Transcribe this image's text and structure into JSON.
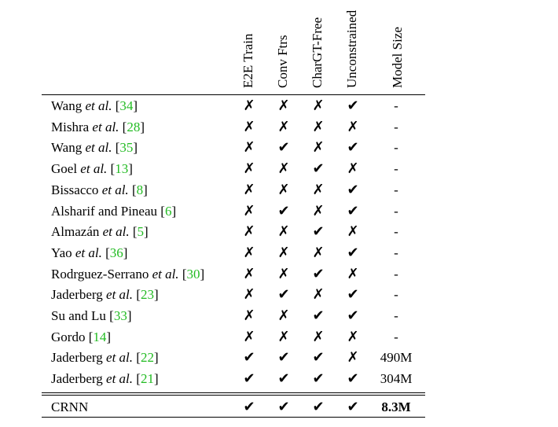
{
  "headers": [
    "E2E Train",
    "Conv Ftrs",
    "CharGT-Free",
    "Unconstrained",
    "Model Size"
  ],
  "rows": [
    {
      "author": "Wang",
      "etal": true,
      "ref": "34",
      "marks": [
        "✗",
        "✗",
        "✗",
        "✔"
      ],
      "size": "-"
    },
    {
      "author": "Mishra",
      "etal": true,
      "ref": "28",
      "marks": [
        "✗",
        "✗",
        "✗",
        "✗"
      ],
      "size": "-"
    },
    {
      "author": "Wang",
      "etal": true,
      "ref": "35",
      "marks": [
        "✗",
        "✔",
        "✗",
        "✔"
      ],
      "size": "-"
    },
    {
      "author": "Goel",
      "etal": true,
      "ref": "13",
      "marks": [
        "✗",
        "✗",
        "✔",
        "✗"
      ],
      "size": "-"
    },
    {
      "author": "Bissacco",
      "etal": true,
      "ref": "8",
      "marks": [
        "✗",
        "✗",
        "✗",
        "✔"
      ],
      "size": "-"
    },
    {
      "author": "Alsharif and Pineau",
      "etal": false,
      "ref": "6",
      "marks": [
        "✗",
        "✔",
        "✗",
        "✔"
      ],
      "size": "-"
    },
    {
      "author": "Almazán",
      "etal": true,
      "ref": "5",
      "marks": [
        "✗",
        "✗",
        "✔",
        "✗"
      ],
      "size": "-"
    },
    {
      "author": "Yao",
      "etal": true,
      "ref": "36",
      "marks": [
        "✗",
        "✗",
        "✗",
        "✔"
      ],
      "size": "-"
    },
    {
      "author": "Rodrguez-Serrano",
      "etal": true,
      "ref": "30",
      "marks": [
        "✗",
        "✗",
        "✔",
        "✗"
      ],
      "size": "-"
    },
    {
      "author": "Jaderberg",
      "etal": true,
      "ref": "23",
      "marks": [
        "✗",
        "✔",
        "✗",
        "✔"
      ],
      "size": "-"
    },
    {
      "author": "Su and Lu",
      "etal": false,
      "ref": "33",
      "marks": [
        "✗",
        "✗",
        "✔",
        "✔"
      ],
      "size": "-"
    },
    {
      "author": "Gordo",
      "etal": false,
      "ref": "14",
      "marks": [
        "✗",
        "✗",
        "✗",
        "✗"
      ],
      "size": "-"
    },
    {
      "author": "Jaderberg",
      "etal": true,
      "ref": "22",
      "marks": [
        "✔",
        "✔",
        "✔",
        "✗"
      ],
      "size": "490M"
    },
    {
      "author": "Jaderberg",
      "etal": true,
      "ref": "21",
      "marks": [
        "✔",
        "✔",
        "✔",
        "✔"
      ],
      "size": "304M"
    }
  ],
  "final_row": {
    "author": "CRNN",
    "marks": [
      "✔",
      "✔",
      "✔",
      "✔"
    ],
    "size": "8.3M"
  },
  "etal_text": "et al."
}
